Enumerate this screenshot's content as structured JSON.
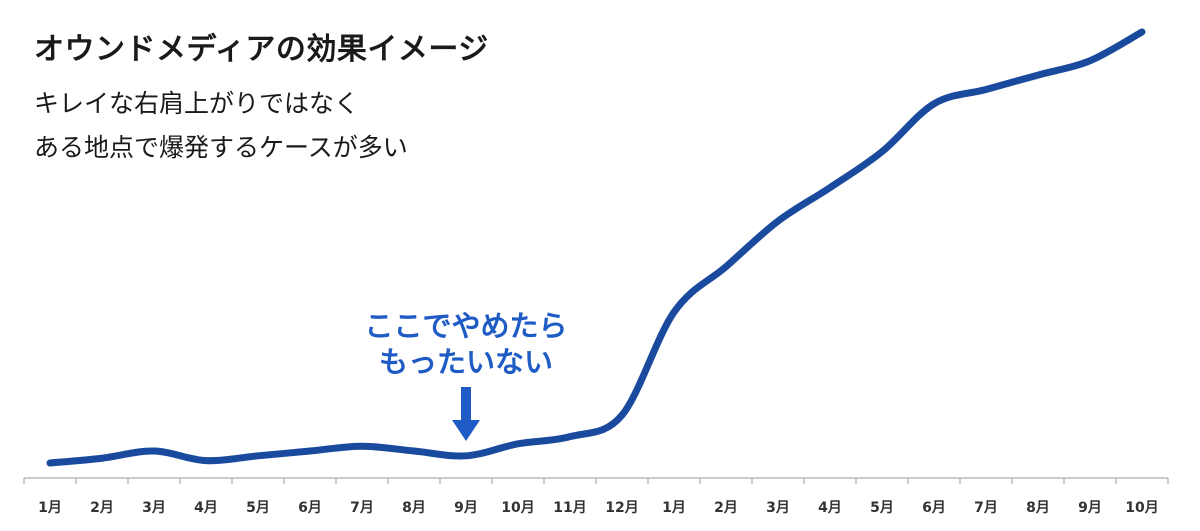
{
  "header": {
    "title": "オウンドメディアの効果イメージ",
    "subtitle_line1": "キレイな右肩上がりではなく",
    "subtitle_line2": "ある地点で爆発するケースが多い"
  },
  "annotation": {
    "line1": "ここでやめたら",
    "line2": "もったいない",
    "category": "9月",
    "category_index": 8
  },
  "colors": {
    "line": "#1a4a9e",
    "annotation": "#1f5bc4",
    "axis": "#bbbbbb",
    "tick_text": "#333333"
  },
  "chart_data": {
    "type": "line",
    "categories": [
      "1月",
      "2月",
      "3月",
      "4月",
      "5月",
      "6月",
      "7月",
      "8月",
      "9月",
      "10月",
      "11月",
      "12月",
      "1月",
      "2月",
      "3月",
      "4月",
      "5月",
      "6月",
      "7月",
      "8月",
      "9月",
      "10月"
    ],
    "series": [
      {
        "values": [
          0,
          2,
          5,
          1,
          3,
          5,
          7,
          5,
          3,
          8,
          11,
          20,
          63,
          82,
          101,
          115,
          130,
          150,
          156,
          162,
          168,
          180
        ]
      }
    ],
    "ylim": [
      0,
      185
    ],
    "grid": false,
    "legend": "none"
  }
}
